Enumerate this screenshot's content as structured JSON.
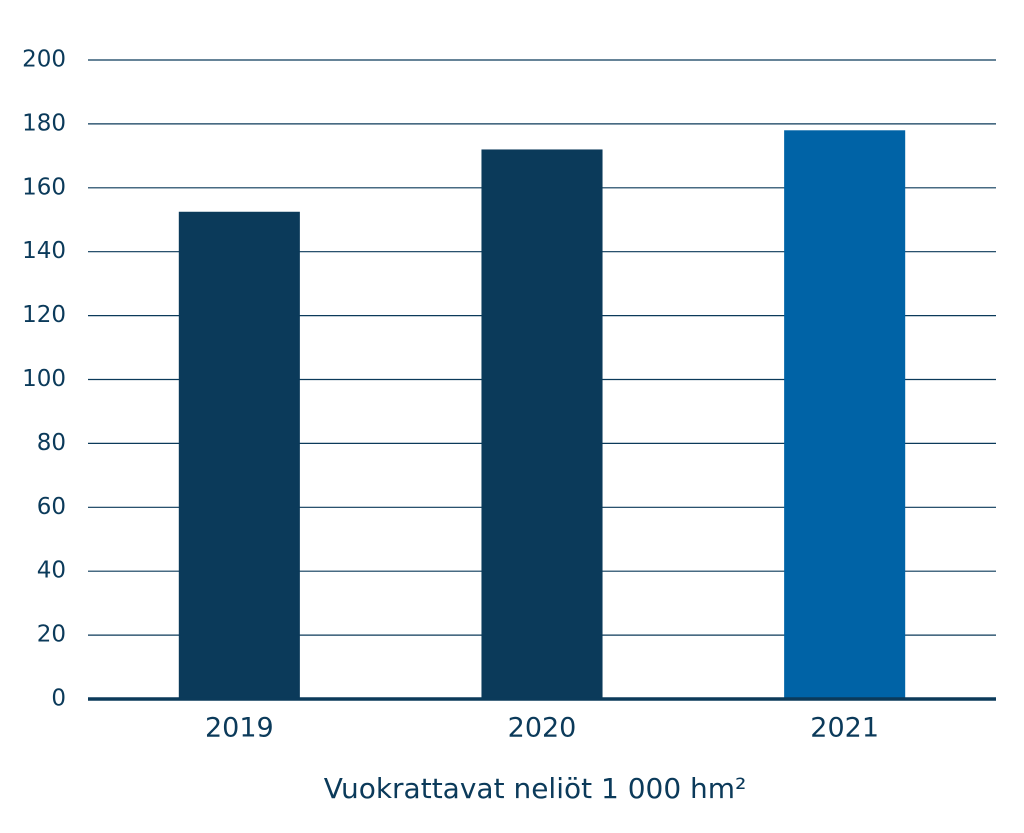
{
  "chart_data": {
    "type": "bar",
    "x_label": "Vuokrattavat neliöt 1 000 hm²",
    "categories": [
      "2019",
      "2020",
      "2021"
    ],
    "values": [
      152.5,
      172,
      178
    ],
    "colors": [
      "#0b3a5a",
      "#0b3a5a",
      "#0063a6"
    ],
    "ylim": [
      0,
      200
    ],
    "yticks": [
      0,
      20,
      40,
      60,
      80,
      100,
      120,
      140,
      160,
      180,
      200
    ],
    "grid": true
  }
}
